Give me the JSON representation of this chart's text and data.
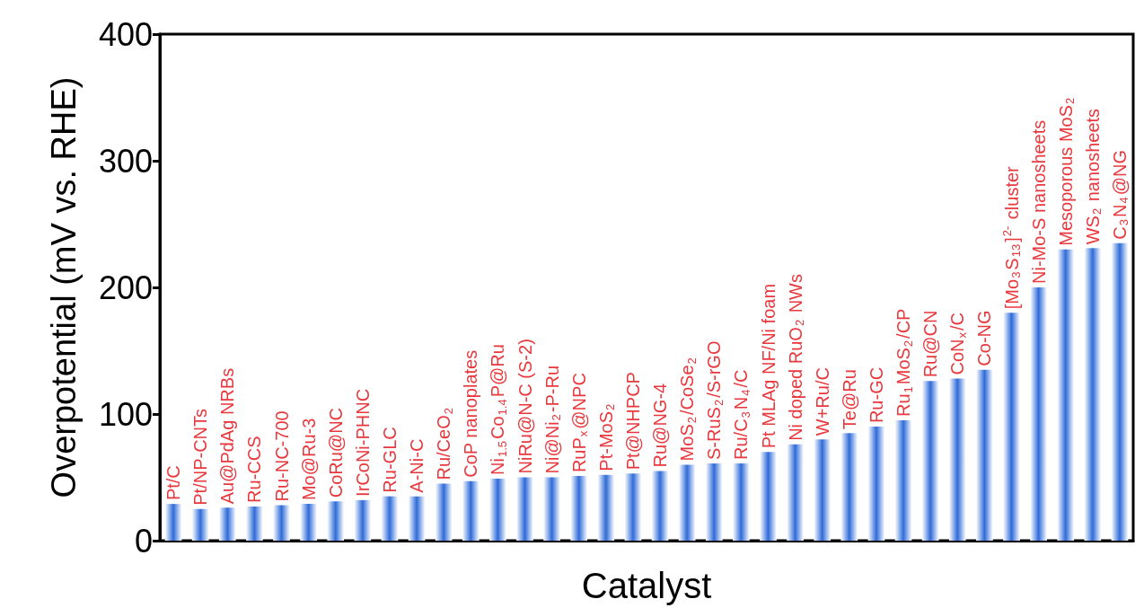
{
  "chart_data": {
    "type": "bar",
    "xlabel": "Catalyst",
    "ylabel": "Overpotential (mV vs. RHE)",
    "categories": [
      "Pt/C",
      "Pt/NP-CNTs",
      "Au@PdAg NRBs",
      "Ru-CCS",
      "Ru-NC-700",
      "Mo@Ru-3",
      "CoRu@NC",
      "IrCoNi-PHNC",
      "Ru-GLC",
      "A-Ni-C",
      "Ru/CeO$_{2}$",
      "CoP nanoplates",
      "Ni$_{1.5}$Co$_{1.4}$P@Ru",
      "NiRu@N-C (S-2)",
      "Ni@Ni$_{2}$-P-Ru",
      "RuP$_{x}$@NPC",
      "Pt-MoS$_{2}$",
      "Pt@NHPCP",
      "Ru@NG-4",
      "MoS$_{2}$/CoSe$_{2}$",
      "S-RuS$_{2}$/S-rGO",
      "Ru/C$_{3}$N$_{4}$/C",
      "Pt MLAg NF/Ni foam",
      "Ni doped RuO$_{2}$ NWs",
      "W+Ru/C",
      "Te@Ru",
      "Ru-GC",
      "Ru$_{1}$MoS$_{2}$/CP",
      "Ru@CN",
      "CoN$_{x}$/C",
      "Co-NG",
      "[Mo$_{3}$S$_{13}$]$^{2-}$ cluster",
      "Ni-Mo-S nanosheets",
      "Mesoporous MoS$_{2}$",
      "WS$_{2}$ nanosheets",
      "C$_{3}$N$_{4}$@NG"
    ],
    "values": [
      29,
      25,
      26,
      27,
      28,
      29,
      31,
      32,
      35,
      35,
      45,
      47,
      49,
      50,
      50,
      51,
      52,
      53,
      55,
      60,
      61,
      61,
      70,
      76,
      80,
      85,
      90,
      95,
      126,
      128,
      135,
      180,
      200,
      230,
      231,
      235
    ],
    "color": "#2e6bd9",
    "ylim": [
      0,
      400
    ],
    "yticks": [
      0,
      100,
      200,
      300,
      400
    ],
    "grid": false
  }
}
